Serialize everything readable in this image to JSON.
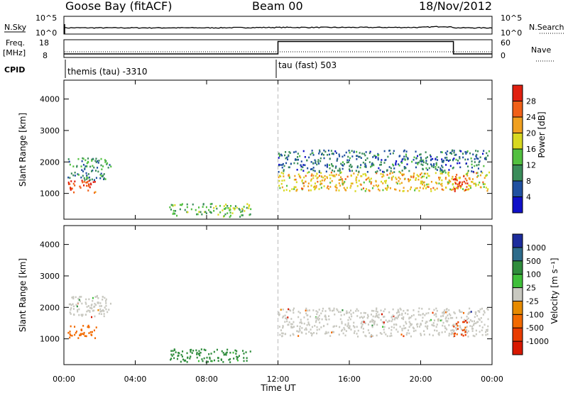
{
  "header": {
    "station": "Goose Bay (fitACF)",
    "beam": "Beam 00",
    "date": "18/Nov/2012"
  },
  "colors": {
    "power_scale": [
      "#1010c8",
      "#2050a0",
      "#3a8c5a",
      "#52c040",
      "#d8d820",
      "#f0a020",
      "#f06018",
      "#e02010"
    ],
    "velocity_scale": [
      "#1c2c9c",
      "#2d6b8a",
      "#2f8c3c",
      "#3fbf3a",
      "#c8c8c0",
      "#e68a00",
      "#f26a00",
      "#e83c00",
      "#d81800"
    ],
    "ground_scatter": "#c8c8c0"
  },
  "chart_data": [
    {
      "type": "line",
      "panel": "noise",
      "series": [
        {
          "name": "N.Sky",
          "x": [
            "00:00",
            "04:00",
            "08:00",
            "12:00",
            "16:00",
            "20:00",
            "21:20",
            "22:00",
            "00:00"
          ],
          "y": [
            30,
            30,
            30,
            40,
            40,
            40,
            80,
            30,
            30
          ]
        },
        {
          "name": "N.Search",
          "x": [
            "00:00",
            "00:00"
          ],
          "y": [
            1,
            1
          ]
        }
      ],
      "y_left_ticks": [
        "10^5",
        "10^0"
      ],
      "y_right_ticks": [
        "10^5",
        "10^0"
      ],
      "y_left_label": "N.Sky",
      "y_right_label": "N.Search"
    },
    {
      "type": "line",
      "panel": "frequency-nave",
      "series": [
        {
          "name": "Freq. [MHz]",
          "x": [
            "00:00",
            "12:00",
            "12:00",
            "21:50",
            "21:50",
            "00:00"
          ],
          "y": [
            10,
            10,
            17,
            17,
            10,
            10
          ]
        },
        {
          "name": "Nave",
          "x": [
            "00:00",
            "00:00"
          ],
          "y": [
            1,
            1
          ]
        }
      ],
      "y_left_ticks": [
        "18",
        "8"
      ],
      "y_right_ticks": [
        "60",
        "0"
      ],
      "y_left_label": "Freq.",
      "y_left_unit": "[MHz]",
      "y_right_label": "Nave",
      "ylim": [
        8,
        18
      ]
    },
    {
      "type": "table",
      "panel": "cpid",
      "label": "CPID",
      "segments": [
        {
          "start": "00:00",
          "text": "themis (tau) -3310"
        },
        {
          "start": "12:00",
          "text": "tau (fast) 503"
        }
      ]
    },
    {
      "type": "heatmap",
      "panel": "power",
      "ylabel": "Slant Range [km]",
      "y_ticks": [
        1000,
        2000,
        3000,
        4000
      ],
      "ylim": [
        180,
        4600
      ],
      "x_ticks": [
        "00:00",
        "04:00",
        "08:00",
        "12:00",
        "16:00",
        "20:00",
        "00:00"
      ],
      "colorbar": {
        "label": "Power [dB]",
        "ticks": [
          4,
          8,
          12,
          16,
          20,
          24,
          28
        ]
      },
      "regions": [
        {
          "t0": 0.2,
          "t1": 1.8,
          "r0": 1050,
          "r1": 1450,
          "level": 26
        },
        {
          "t0": 0.2,
          "t1": 2.6,
          "r0": 1450,
          "r1": 2150,
          "level": 8
        },
        {
          "t0": 5.9,
          "t1": 10.5,
          "r0": 280,
          "r1": 700,
          "level": 12
        },
        {
          "t0": 12.0,
          "t1": 23.8,
          "r0": 1100,
          "r1": 1700,
          "level": 18
        },
        {
          "t0": 12.0,
          "t1": 23.8,
          "r0": 1700,
          "r1": 2400,
          "level": 6
        },
        {
          "t0": 21.8,
          "t1": 22.6,
          "r0": 1100,
          "r1": 1600,
          "level": 28
        }
      ]
    },
    {
      "type": "heatmap",
      "panel": "velocity",
      "ylabel": "Slant Range [km]",
      "xlabel": "Time UT",
      "y_ticks": [
        1000,
        2000,
        3000,
        4000
      ],
      "ylim": [
        180,
        4600
      ],
      "x_ticks": [
        "00:00",
        "04:00",
        "08:00",
        "12:00",
        "16:00",
        "20:00",
        "00:00"
      ],
      "colorbar": {
        "label": "Velocity [m s⁻¹]",
        "ticks": [
          1000,
          500,
          100,
          25,
          -25,
          -100,
          -500,
          -1000
        ]
      },
      "regions": [
        {
          "t0": 0.2,
          "t1": 1.8,
          "r0": 1050,
          "r1": 1450,
          "level": -300
        },
        {
          "t0": 0.2,
          "t1": 2.6,
          "r0": 1700,
          "r1": 2400,
          "level": 0
        },
        {
          "t0": 5.9,
          "t1": 10.5,
          "r0": 280,
          "r1": 700,
          "level": 150
        },
        {
          "t0": 12.0,
          "t1": 23.8,
          "r0": 1100,
          "r1": 2000,
          "level": 0
        },
        {
          "t0": 21.8,
          "t1": 22.6,
          "r0": 1100,
          "r1": 1600,
          "level": -600
        }
      ]
    }
  ]
}
